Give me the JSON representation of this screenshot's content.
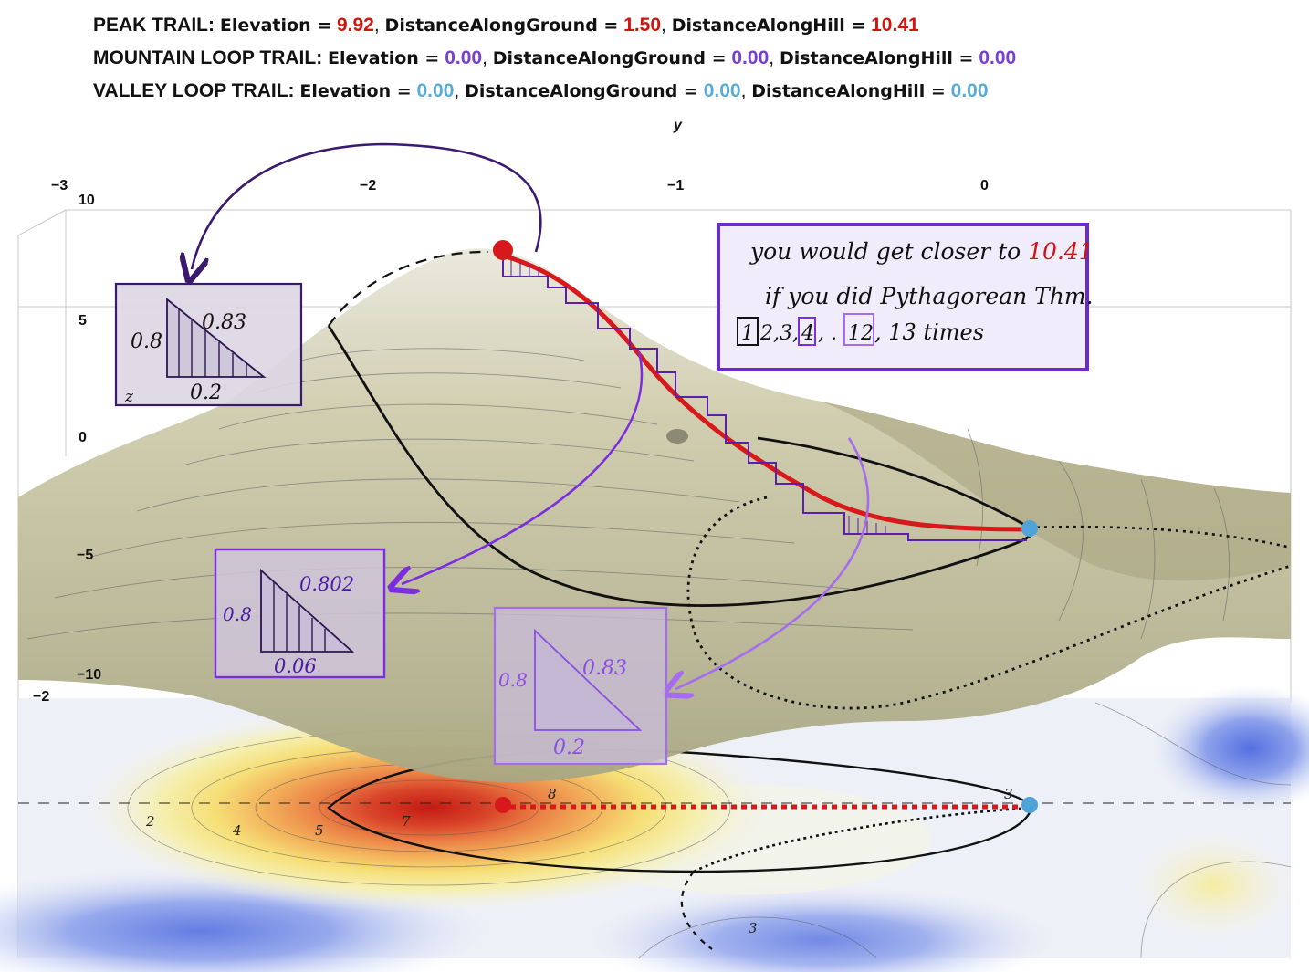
{
  "readouts": [
    {
      "trail": "PEAK TRAIL:",
      "elevation": "9.92",
      "ground": "1.50",
      "hill": "10.41",
      "color": "#d0140f"
    },
    {
      "trail": "MOUNTAIN LOOP TRAIL:",
      "elevation": "0.00",
      "ground": "0.00",
      "hill": "0.00",
      "color": "#7a3fd0"
    },
    {
      "trail": "VALLEY LOOP TRAIL:",
      "elevation": "0.00",
      "ground": "0.00",
      "hill": "0.00",
      "color": "#5aaad6"
    }
  ],
  "labels": {
    "elevation": "Elevation =",
    "ground": "DistanceAlongGround =",
    "hill": "DistanceAlongHill =",
    "sep": ","
  },
  "axes": {
    "y_label": "y",
    "y_ticks": [
      "−3",
      "−2",
      "−1",
      "0"
    ],
    "z_ticks": [
      "10",
      "5",
      "0",
      "−5",
      "−10"
    ],
    "z_label": "z",
    "x_tick": "−2"
  },
  "note": {
    "line1_a": "you would get closer to ",
    "line1_value": "10.41",
    "line2": "if you did Pythagorean Thm.",
    "line3_boxes": [
      "1",
      "4",
      "12"
    ],
    "line3_text_a": "2,3,",
    "line3_text_b": ", .",
    "line3_text_c": ", 13 times"
  },
  "triangles": [
    {
      "vertical": "0.8",
      "hyp": "0.83",
      "base": "0.2"
    },
    {
      "vertical": "0.8",
      "hyp": "0.802",
      "base": "0.06"
    },
    {
      "vertical": "0.8",
      "hyp": "0.83",
      "base": "0.2"
    }
  ],
  "contour_labels": [
    "2",
    "4",
    "5",
    "7",
    "8",
    "3",
    "3"
  ],
  "colors": {
    "peak": "#d0140f",
    "mountain": "#5b1fa8",
    "valley": "#a06ae8",
    "trail_red": "#d7191c",
    "blue_dot": "#4ea3d8",
    "surface": "#b9b690"
  }
}
